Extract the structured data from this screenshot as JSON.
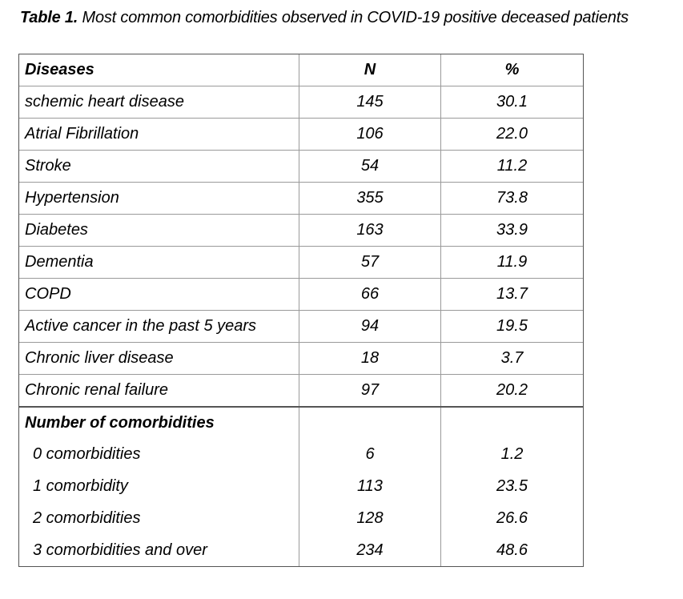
{
  "caption": {
    "lead": "Table 1.",
    "text": " Most common comorbidities observed in COVID-19 positive deceased patients"
  },
  "table": {
    "headers": [
      "Diseases",
      "N",
      "%"
    ],
    "rows": [
      {
        "label": "schemic heart disease",
        "n": "145",
        "pct": "30.1"
      },
      {
        "label": "Atrial Fibrillation",
        "n": "106",
        "pct": "22.0"
      },
      {
        "label": "Stroke",
        "n": "54",
        "pct": "11.2"
      },
      {
        "label": "Hypertension",
        "n": "355",
        "pct": "73.8"
      },
      {
        "label": "Diabetes",
        "n": "163",
        "pct": "33.9"
      },
      {
        "label": "Dementia",
        "n": "57",
        "pct": "11.9"
      },
      {
        "label": "COPD",
        "n": "66",
        "pct": "13.7"
      },
      {
        "label": "Active cancer in the past 5 years",
        "n": "94",
        "pct": "19.5"
      },
      {
        "label": "Chronic liver disease",
        "n": "18",
        "pct": "3.7"
      },
      {
        "label": "Chronic renal failure",
        "n": "97",
        "pct": "20.2"
      }
    ],
    "section_title": "Number of comorbidities",
    "section_rows": [
      {
        "label": "0 comorbidities",
        "n": "6",
        "pct": "1.2"
      },
      {
        "label": "1 comorbidity",
        "n": "113",
        "pct": "23.5"
      },
      {
        "label": "2 comorbidities",
        "n": "128",
        "pct": "26.6"
      },
      {
        "label": "3 comorbidities and over",
        "n": "234",
        "pct": "48.6"
      }
    ]
  }
}
